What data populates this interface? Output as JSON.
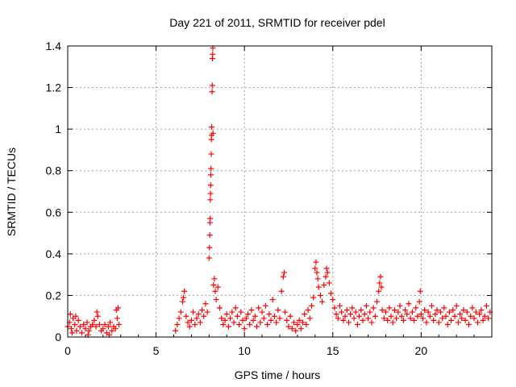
{
  "chart_data": {
    "type": "scatter",
    "title": "Day 221 of 2011, SRMTID for receiver pdel",
    "xlabel": "GPS time / hours",
    "ylabel": "SRMTID / TECUs",
    "xlim": [
      0,
      24
    ],
    "ylim": [
      0,
      1.4
    ],
    "xticks": [
      0,
      5,
      10,
      15,
      20
    ],
    "yticks": [
      0,
      0.2,
      0.4,
      0.6,
      0.8,
      1,
      1.2,
      1.4
    ],
    "xtick_labels": [
      "0",
      "5",
      "10",
      "15",
      "20"
    ],
    "ytick_labels": [
      "0",
      "0.2",
      "0.4",
      "0.6",
      "0.8",
      "1",
      "1.2",
      "1.4"
    ],
    "grid": true,
    "marker": "+",
    "series_color": "#ff0000",
    "series": [
      {
        "name": "SRMTID",
        "points": [
          [
            0.0,
            0.05
          ],
          [
            0.1,
            0.07
          ],
          [
            0.2,
            0.04
          ],
          [
            0.3,
            0.09
          ],
          [
            0.4,
            0.06
          ],
          [
            0.5,
            0.03
          ],
          [
            0.6,
            0.08
          ],
          [
            0.7,
            0.05
          ],
          [
            0.8,
            0.02
          ],
          [
            0.9,
            0.06
          ],
          [
            1.0,
            0.04
          ],
          [
            1.1,
            0.07
          ],
          [
            1.2,
            0.03
          ],
          [
            1.3,
            0.05
          ],
          [
            1.4,
            0.06
          ],
          [
            1.5,
            0.08
          ],
          [
            1.6,
            0.05
          ],
          [
            1.7,
            0.1
          ],
          [
            1.8,
            0.06
          ],
          [
            1.9,
            0.03
          ],
          [
            2.0,
            0.04
          ],
          [
            2.1,
            0.06
          ],
          [
            2.2,
            0.02
          ],
          [
            2.3,
            0.05
          ],
          [
            2.4,
            0.07
          ],
          [
            2.5,
            0.03
          ],
          [
            2.6,
            0.05
          ],
          [
            2.7,
            0.04
          ],
          [
            2.8,
            0.09
          ],
          [
            2.9,
            0.06
          ],
          [
            0.15,
            0.11
          ],
          [
            0.45,
            0.1
          ],
          [
            1.65,
            0.12
          ],
          [
            2.75,
            0.13
          ],
          [
            2.85,
            0.14
          ],
          [
            0.25,
            0.02
          ],
          [
            1.15,
            0.01
          ],
          [
            2.35,
            0.01
          ],
          [
            6.1,
            0.03
          ],
          [
            6.2,
            0.06
          ],
          [
            6.3,
            0.09
          ],
          [
            6.4,
            0.12
          ],
          [
            6.5,
            0.17
          ],
          [
            6.55,
            0.19
          ],
          [
            6.6,
            0.22
          ],
          [
            6.7,
            0.1
          ],
          [
            6.8,
            0.07
          ],
          [
            6.9,
            0.05
          ],
          [
            7.0,
            0.08
          ],
          [
            7.1,
            0.12
          ],
          [
            7.2,
            0.06
          ],
          [
            7.3,
            0.09
          ],
          [
            7.4,
            0.11
          ],
          [
            7.5,
            0.07
          ],
          [
            7.6,
            0.13
          ],
          [
            7.7,
            0.1
          ],
          [
            7.8,
            0.16
          ],
          [
            7.9,
            0.12
          ],
          [
            8.0,
            0.38
          ],
          [
            8.02,
            0.43
          ],
          [
            8.04,
            0.49
          ],
          [
            8.05,
            0.55
          ],
          [
            8.06,
            0.57
          ],
          [
            8.07,
            0.66
          ],
          [
            8.08,
            0.69
          ],
          [
            8.09,
            0.73
          ],
          [
            8.1,
            0.78
          ],
          [
            8.11,
            0.81
          ],
          [
            8.12,
            0.88
          ],
          [
            8.13,
            0.95
          ],
          [
            8.14,
            0.97
          ],
          [
            8.15,
            1.01
          ],
          [
            8.17,
            1.18
          ],
          [
            8.18,
            1.21
          ],
          [
            8.19,
            1.34
          ],
          [
            8.2,
            1.36
          ],
          [
            8.21,
            1.39
          ],
          [
            8.22,
            0.98
          ],
          [
            8.25,
            0.25
          ],
          [
            8.3,
            0.28
          ],
          [
            8.35,
            0.22
          ],
          [
            8.4,
            0.18
          ],
          [
            8.5,
            0.24
          ],
          [
            8.6,
            0.14
          ],
          [
            8.7,
            0.09
          ],
          [
            8.8,
            0.06
          ],
          [
            8.9,
            0.08
          ],
          [
            9.0,
            0.11
          ],
          [
            9.1,
            0.05
          ],
          [
            9.2,
            0.09
          ],
          [
            9.3,
            0.12
          ],
          [
            9.4,
            0.07
          ],
          [
            9.5,
            0.14
          ],
          [
            9.6,
            0.1
          ],
          [
            9.7,
            0.06
          ],
          [
            9.8,
            0.12
          ],
          [
            9.9,
            0.08
          ],
          [
            10.0,
            0.04
          ],
          [
            10.1,
            0.09
          ],
          [
            10.2,
            0.11
          ],
          [
            10.3,
            0.06
          ],
          [
            10.4,
            0.13
          ],
          [
            10.5,
            0.08
          ],
          [
            10.6,
            0.1
          ],
          [
            10.7,
            0.05
          ],
          [
            10.8,
            0.14
          ],
          [
            10.9,
            0.07
          ],
          [
            11.0,
            0.12
          ],
          [
            11.1,
            0.09
          ],
          [
            11.2,
            0.15
          ],
          [
            11.3,
            0.06
          ],
          [
            11.4,
            0.11
          ],
          [
            11.5,
            0.08
          ],
          [
            11.6,
            0.18
          ],
          [
            11.7,
            0.1
          ],
          [
            11.8,
            0.07
          ],
          [
            11.9,
            0.13
          ],
          [
            12.0,
            0.09
          ],
          [
            12.1,
            0.22
          ],
          [
            12.2,
            0.29
          ],
          [
            12.25,
            0.31
          ],
          [
            12.3,
            0.12
          ],
          [
            12.4,
            0.08
          ],
          [
            12.5,
            0.05
          ],
          [
            12.6,
            0.1
          ],
          [
            12.7,
            0.04
          ],
          [
            12.8,
            0.07
          ],
          [
            12.9,
            0.03
          ],
          [
            13.0,
            0.06
          ],
          [
            13.1,
            0.08
          ],
          [
            13.2,
            0.04
          ],
          [
            13.3,
            0.07
          ],
          [
            13.4,
            0.11
          ],
          [
            13.5,
            0.06
          ],
          [
            13.6,
            0.13
          ],
          [
            13.7,
            0.09
          ],
          [
            13.8,
            0.15
          ],
          [
            13.9,
            0.19
          ],
          [
            14.0,
            0.33
          ],
          [
            14.05,
            0.36
          ],
          [
            14.1,
            0.31
          ],
          [
            14.15,
            0.28
          ],
          [
            14.2,
            0.24
          ],
          [
            14.3,
            0.2
          ],
          [
            14.4,
            0.17
          ],
          [
            14.5,
            0.25
          ],
          [
            14.6,
            0.29
          ],
          [
            14.65,
            0.33
          ],
          [
            14.7,
            0.31
          ],
          [
            14.8,
            0.26
          ],
          [
            14.9,
            0.21
          ],
          [
            15.0,
            0.18
          ],
          [
            15.1,
            0.14
          ],
          [
            15.2,
            0.11
          ],
          [
            15.3,
            0.09
          ],
          [
            15.4,
            0.15
          ],
          [
            15.5,
            0.12
          ],
          [
            15.6,
            0.08
          ],
          [
            15.7,
            0.1
          ],
          [
            15.8,
            0.13
          ],
          [
            15.9,
            0.07
          ],
          [
            16.0,
            0.11
          ],
          [
            16.1,
            0.14
          ],
          [
            16.2,
            0.09
          ],
          [
            16.3,
            0.12
          ],
          [
            16.4,
            0.06
          ],
          [
            16.5,
            0.1
          ],
          [
            16.6,
            0.13
          ],
          [
            16.7,
            0.08
          ],
          [
            16.8,
            0.11
          ],
          [
            16.9,
            0.15
          ],
          [
            17.0,
            0.09
          ],
          [
            17.1,
            0.12
          ],
          [
            17.2,
            0.07
          ],
          [
            17.3,
            0.14
          ],
          [
            17.4,
            0.1
          ],
          [
            17.5,
            0.17
          ],
          [
            17.6,
            0.22
          ],
          [
            17.65,
            0.26
          ],
          [
            17.7,
            0.29
          ],
          [
            17.75,
            0.24
          ],
          [
            17.8,
            0.13
          ],
          [
            17.9,
            0.09
          ],
          [
            18.0,
            0.12
          ],
          [
            18.1,
            0.08
          ],
          [
            18.2,
            0.14
          ],
          [
            18.3,
            0.1
          ],
          [
            18.4,
            0.07
          ],
          [
            18.5,
            0.13
          ],
          [
            18.6,
            0.09
          ],
          [
            18.7,
            0.12
          ],
          [
            18.8,
            0.15
          ],
          [
            18.9,
            0.1
          ],
          [
            19.0,
            0.08
          ],
          [
            19.1,
            0.13
          ],
          [
            19.2,
            0.11
          ],
          [
            19.3,
            0.16
          ],
          [
            19.4,
            0.09
          ],
          [
            19.5,
            0.12
          ],
          [
            19.6,
            0.08
          ],
          [
            19.7,
            0.14
          ],
          [
            19.8,
            0.1
          ],
          [
            19.9,
            0.17
          ],
          [
            19.95,
            0.22
          ],
          [
            20.0,
            0.11
          ],
          [
            20.1,
            0.09
          ],
          [
            20.2,
            0.13
          ],
          [
            20.3,
            0.07
          ],
          [
            20.4,
            0.12
          ],
          [
            20.5,
            0.1
          ],
          [
            20.6,
            0.15
          ],
          [
            20.7,
            0.08
          ],
          [
            20.8,
            0.11
          ],
          [
            20.9,
            0.13
          ],
          [
            21.0,
            0.07
          ],
          [
            21.1,
            0.12
          ],
          [
            21.2,
            0.09
          ],
          [
            21.3,
            0.14
          ],
          [
            21.4,
            0.1
          ],
          [
            21.5,
            0.06
          ],
          [
            21.6,
            0.12
          ],
          [
            21.7,
            0.08
          ],
          [
            21.8,
            0.13
          ],
          [
            21.9,
            0.1
          ],
          [
            22.0,
            0.15
          ],
          [
            22.1,
            0.07
          ],
          [
            22.2,
            0.11
          ],
          [
            22.3,
            0.09
          ],
          [
            22.4,
            0.13
          ],
          [
            22.5,
            0.08
          ],
          [
            22.6,
            0.12
          ],
          [
            22.7,
            0.06
          ],
          [
            22.8,
            0.1
          ],
          [
            22.9,
            0.14
          ],
          [
            23.0,
            0.09
          ],
          [
            23.1,
            0.12
          ],
          [
            23.2,
            0.07
          ],
          [
            23.3,
            0.11
          ],
          [
            23.4,
            0.13
          ],
          [
            23.5,
            0.08
          ],
          [
            23.6,
            0.1
          ],
          [
            23.7,
            0.15
          ],
          [
            23.8,
            0.09
          ],
          [
            23.9,
            0.12
          ]
        ]
      }
    ]
  }
}
